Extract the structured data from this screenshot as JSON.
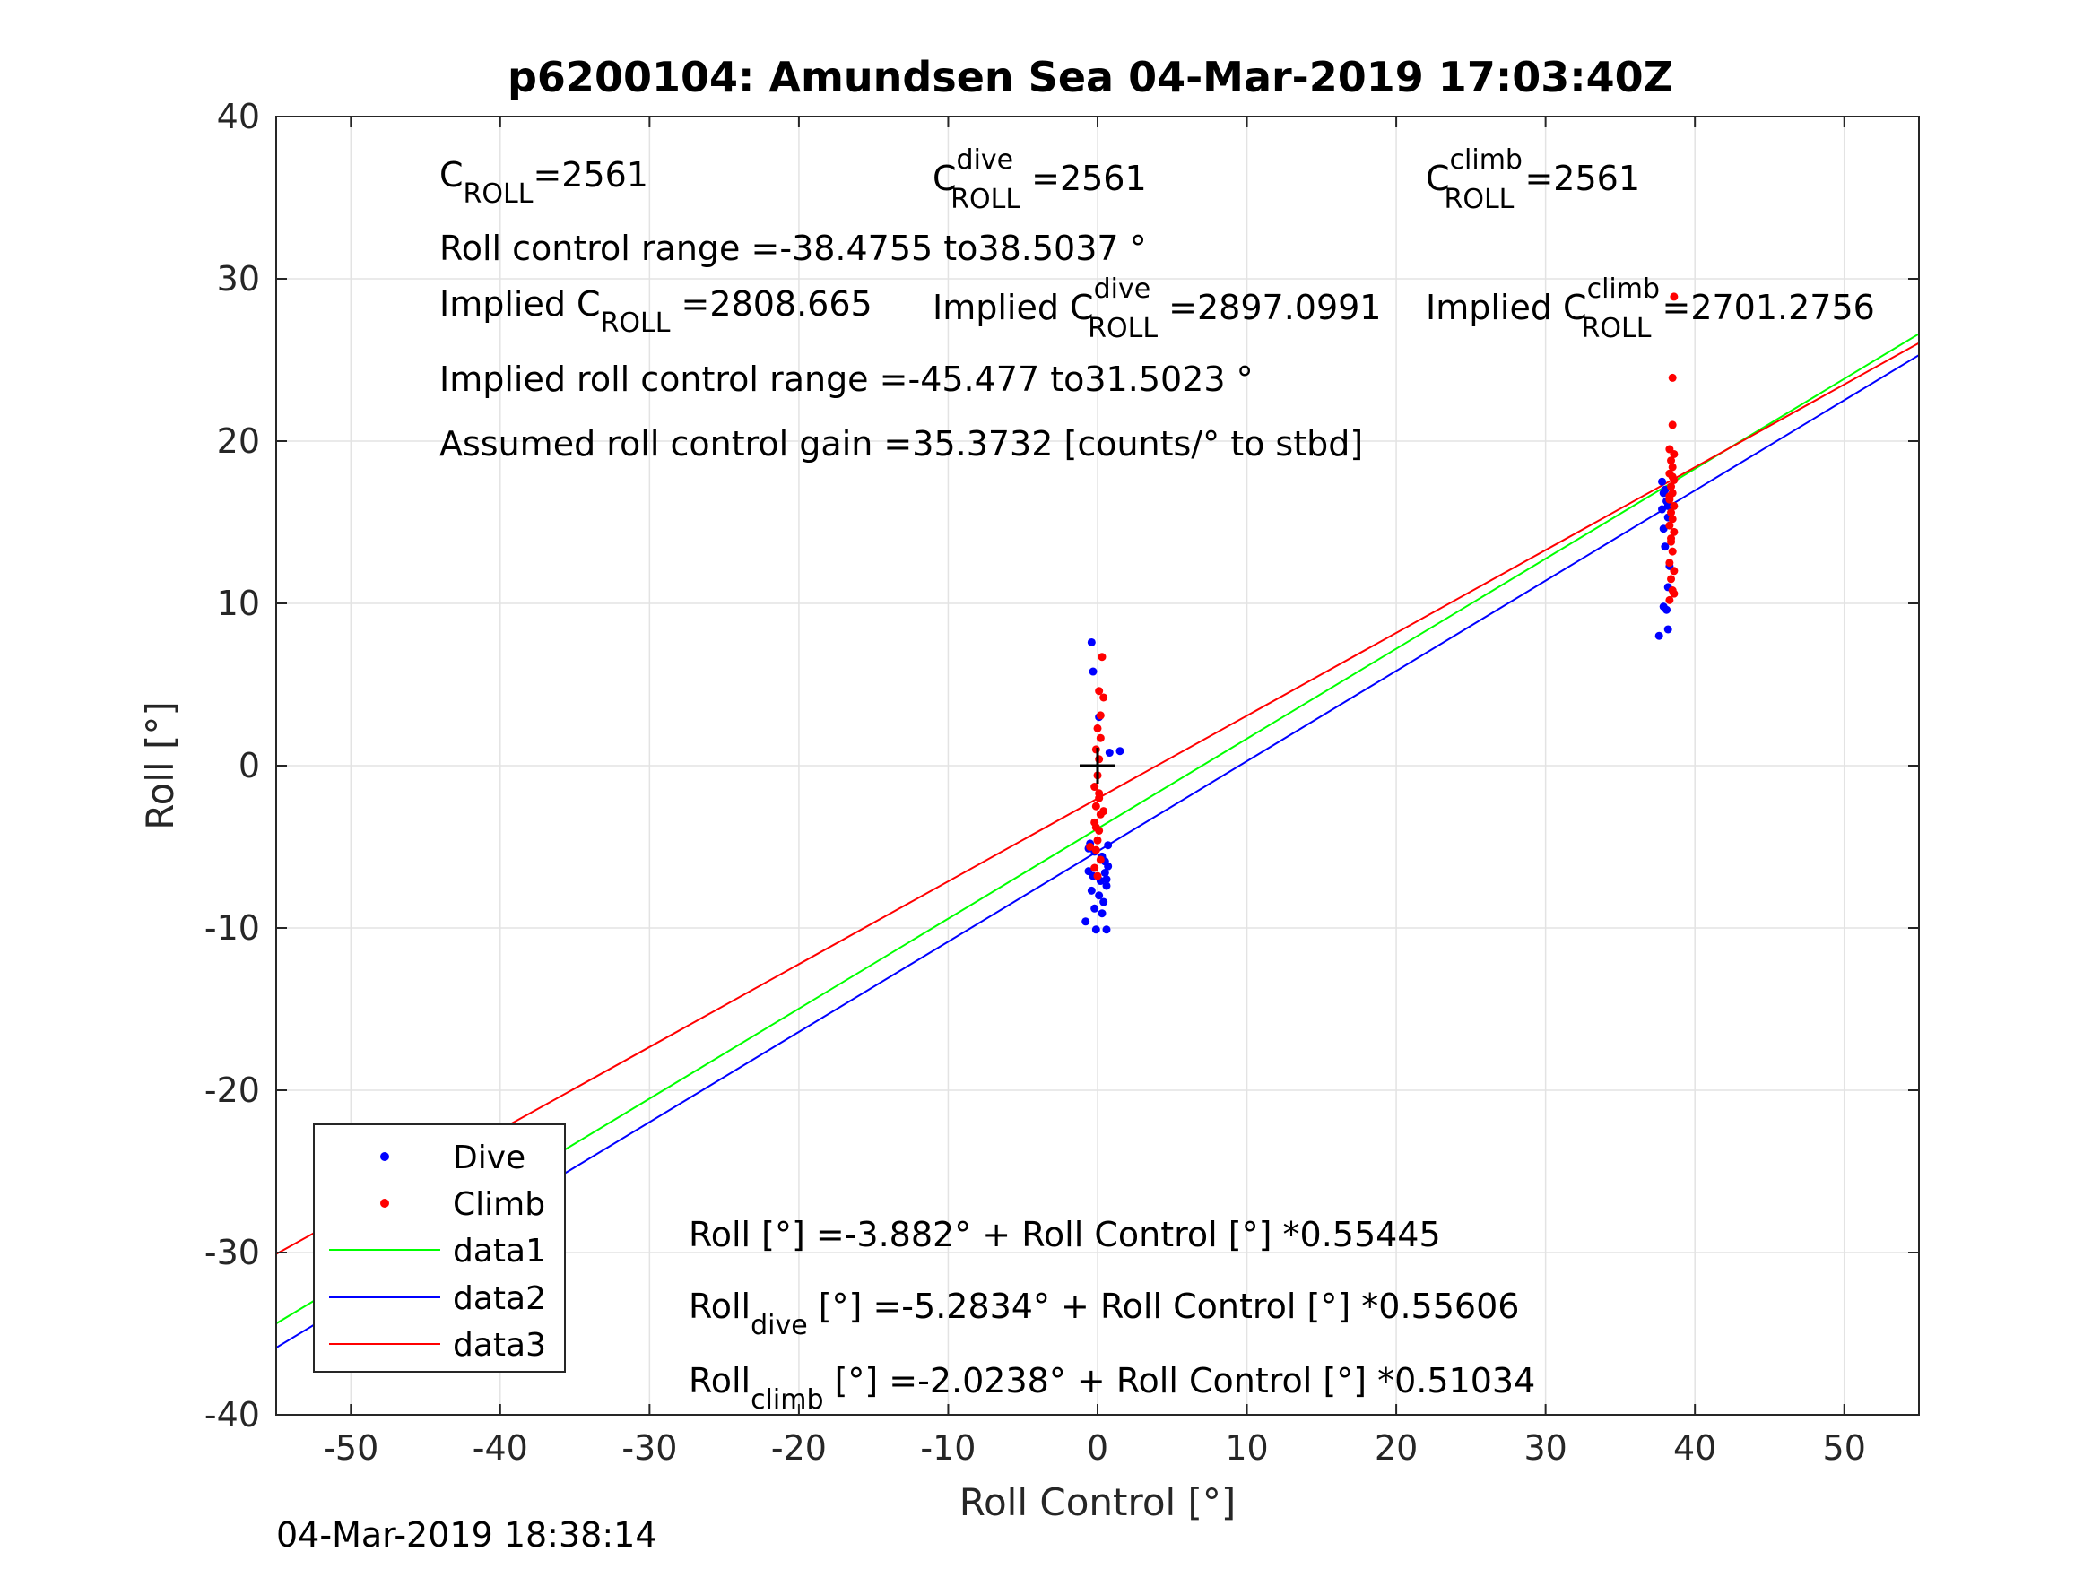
{
  "chart_data": {
    "type": "scatter",
    "title": "p6200104: Amundsen Sea 04-Mar-2019 17:03:40Z",
    "xlabel": "Roll Control [°]",
    "ylabel": "Roll [°]",
    "xlim": [
      -55,
      55
    ],
    "ylim": [
      -40,
      40
    ],
    "xticks": [
      -50,
      -40,
      -30,
      -20,
      -10,
      0,
      10,
      20,
      30,
      40,
      50
    ],
    "yticks": [
      -40,
      -30,
      -20,
      -10,
      0,
      10,
      20,
      30,
      40
    ],
    "grid": true,
    "legend_position": "bottom-left",
    "annotations": {
      "c_roll": {
        "main": "C",
        "sub": "ROLL",
        "value": "=2561"
      },
      "c_roll_dive": {
        "main": "C",
        "sup": "dive",
        "sub": "ROLL",
        "value": " =2561"
      },
      "c_roll_climb": {
        "main": "C",
        "sup": "climb",
        "sub": "ROLL",
        "value": " =2561"
      },
      "roll_control_range": "Roll control range =-38.4755 to38.5037 °",
      "implied_c_roll": {
        "main": "Implied C",
        "sub": "ROLL",
        "value": " =2808.665"
      },
      "implied_c_roll_dive": {
        "main": "Implied C",
        "sup": "dive",
        "sub": "ROLL",
        "value": " =2897.0991"
      },
      "implied_c_roll_climb": {
        "main": "Implied C",
        "sup": "climb",
        "sub": "ROLL",
        "value": " =2701.2756"
      },
      "implied_range": "Implied roll control range =-45.477 to31.5023 °",
      "gain": "Assumed roll control gain =35.3732 [counts/° to stbd]",
      "fit_all": "Roll [°] =-3.882° + Roll Control [°] *0.55445",
      "fit_dive": {
        "main": "Roll",
        "sub": "dive",
        "value": " [°] =-5.2834° + Roll Control [°] *0.55606"
      },
      "fit_climb": {
        "main": "Roll",
        "sub": "climb",
        "value": " [°] =-2.0238° + Roll Control [°] *0.51034"
      }
    },
    "marker": {
      "x": 0,
      "y": 0,
      "color": "#000000"
    },
    "series": [
      {
        "name": "Dive",
        "kind": "points",
        "color": "#0000ff",
        "points": [
          [
            -38.9,
            -22.8
          ],
          [
            -38.3,
            -23.5
          ],
          [
            -37.8,
            -22.4
          ],
          [
            -37.9,
            -23.2
          ],
          [
            -38.8,
            -26.8
          ],
          [
            -38.4,
            -27.1
          ],
          [
            -38.9,
            -27.5
          ],
          [
            -38.3,
            -27.8
          ],
          [
            -38.6,
            -28.2
          ],
          [
            -38.1,
            -28.5
          ],
          [
            -38.9,
            -28.9
          ],
          [
            -38.4,
            -29.2
          ],
          [
            -38.6,
            -29.6
          ],
          [
            -38.2,
            -30.0
          ],
          [
            -38.8,
            -30.4
          ],
          [
            -38.5,
            -30.8
          ],
          [
            -38.3,
            -31.2
          ],
          [
            -38.7,
            -32.4
          ],
          [
            -38.1,
            -27.3
          ],
          [
            -38.7,
            -26.6
          ],
          [
            -38.4,
            -28.7
          ],
          [
            -38.9,
            -29.9
          ],
          [
            -0.4,
            7.6
          ],
          [
            -0.3,
            5.8
          ],
          [
            0.1,
            3.0
          ],
          [
            0.8,
            0.8
          ],
          [
            1.5,
            0.9
          ],
          [
            -0.5,
            -4.8
          ],
          [
            -0.2,
            -5.3
          ],
          [
            0.3,
            -5.6
          ],
          [
            0.5,
            -5.9
          ],
          [
            0.7,
            -6.2
          ],
          [
            -0.6,
            -6.5
          ],
          [
            -0.3,
            -6.8
          ],
          [
            0.2,
            -7.1
          ],
          [
            0.6,
            -7.4
          ],
          [
            -0.4,
            -7.7
          ],
          [
            0.1,
            -8.0
          ],
          [
            0.4,
            -8.4
          ],
          [
            -0.2,
            -8.8
          ],
          [
            0.3,
            -9.1
          ],
          [
            -0.6,
            -5.1
          ],
          [
            0.7,
            -4.9
          ],
          [
            0.5,
            -6.6
          ],
          [
            0.6,
            -7.0
          ],
          [
            -0.8,
            -9.6
          ],
          [
            -0.1,
            -10.1
          ],
          [
            0.6,
            -10.1
          ],
          [
            37.8,
            17.5
          ],
          [
            37.9,
            16.8
          ],
          [
            38.1,
            16.3
          ],
          [
            37.8,
            15.8
          ],
          [
            38.2,
            15.3
          ],
          [
            37.9,
            14.6
          ],
          [
            38.0,
            13.5
          ],
          [
            38.3,
            12.3
          ],
          [
            38.2,
            11.0
          ],
          [
            37.9,
            9.8
          ],
          [
            38.1,
            9.6
          ],
          [
            38.2,
            8.4
          ],
          [
            37.6,
            8.0
          ],
          [
            38.0,
            17.0
          ],
          [
            38.2,
            16.0
          ]
        ]
      },
      {
        "name": "Climb",
        "kind": "points",
        "color": "#ff0000",
        "points": [
          [
            38.6,
            28.9
          ],
          [
            38.5,
            23.9
          ],
          [
            38.5,
            21.0
          ],
          [
            38.3,
            19.5
          ],
          [
            38.6,
            19.2
          ],
          [
            38.4,
            18.8
          ],
          [
            38.5,
            18.4
          ],
          [
            38.3,
            18.0
          ],
          [
            38.6,
            17.6
          ],
          [
            38.4,
            17.2
          ],
          [
            38.5,
            16.8
          ],
          [
            38.3,
            16.4
          ],
          [
            38.6,
            16.0
          ],
          [
            38.4,
            15.6
          ],
          [
            38.5,
            15.2
          ],
          [
            38.3,
            14.8
          ],
          [
            38.6,
            14.4
          ],
          [
            38.4,
            14.0
          ],
          [
            38.5,
            13.2
          ],
          [
            38.3,
            12.5
          ],
          [
            38.6,
            12.0
          ],
          [
            38.4,
            11.5
          ],
          [
            38.5,
            10.8
          ],
          [
            38.3,
            10.2
          ],
          [
            38.6,
            10.6
          ],
          [
            38.4,
            13.8
          ],
          [
            38.5,
            17.8
          ],
          [
            38.3,
            16.6
          ],
          [
            0.3,
            6.7
          ],
          [
            0.1,
            4.6
          ],
          [
            0.4,
            4.2
          ],
          [
            0.2,
            3.1
          ],
          [
            0.0,
            2.3
          ],
          [
            0.2,
            1.7
          ],
          [
            -0.1,
            1.0
          ],
          [
            0.1,
            0.4
          ],
          [
            0.0,
            -0.6
          ],
          [
            -0.2,
            -1.3
          ],
          [
            0.1,
            -2.0
          ],
          [
            -0.1,
            -2.5
          ],
          [
            0.2,
            -3.0
          ],
          [
            -0.2,
            -3.5
          ],
          [
            0.1,
            -4.0
          ],
          [
            0.0,
            -4.6
          ],
          [
            -0.1,
            -5.2
          ],
          [
            0.2,
            -5.8
          ],
          [
            -0.2,
            -6.3
          ],
          [
            0.0,
            -6.8
          ],
          [
            0.1,
            -1.7
          ],
          [
            -0.1,
            -3.8
          ],
          [
            -0.5,
            -5.0
          ],
          [
            0.4,
            -2.8
          ]
        ]
      },
      {
        "name": "data1",
        "kind": "line",
        "color": "#00ff00",
        "x": [
          -55,
          55
        ],
        "y": [
          -34.377,
          26.613
        ]
      },
      {
        "name": "data2",
        "kind": "line",
        "color": "#0000ff",
        "x": [
          -55,
          55
        ],
        "y": [
          -35.867,
          25.3
        ]
      },
      {
        "name": "data3",
        "kind": "line",
        "color": "#ff0000",
        "x": [
          -55,
          55
        ],
        "y": [
          -30.092,
          26.045
        ]
      }
    ]
  },
  "timestamp": "04-Mar-2019 18:38:14"
}
